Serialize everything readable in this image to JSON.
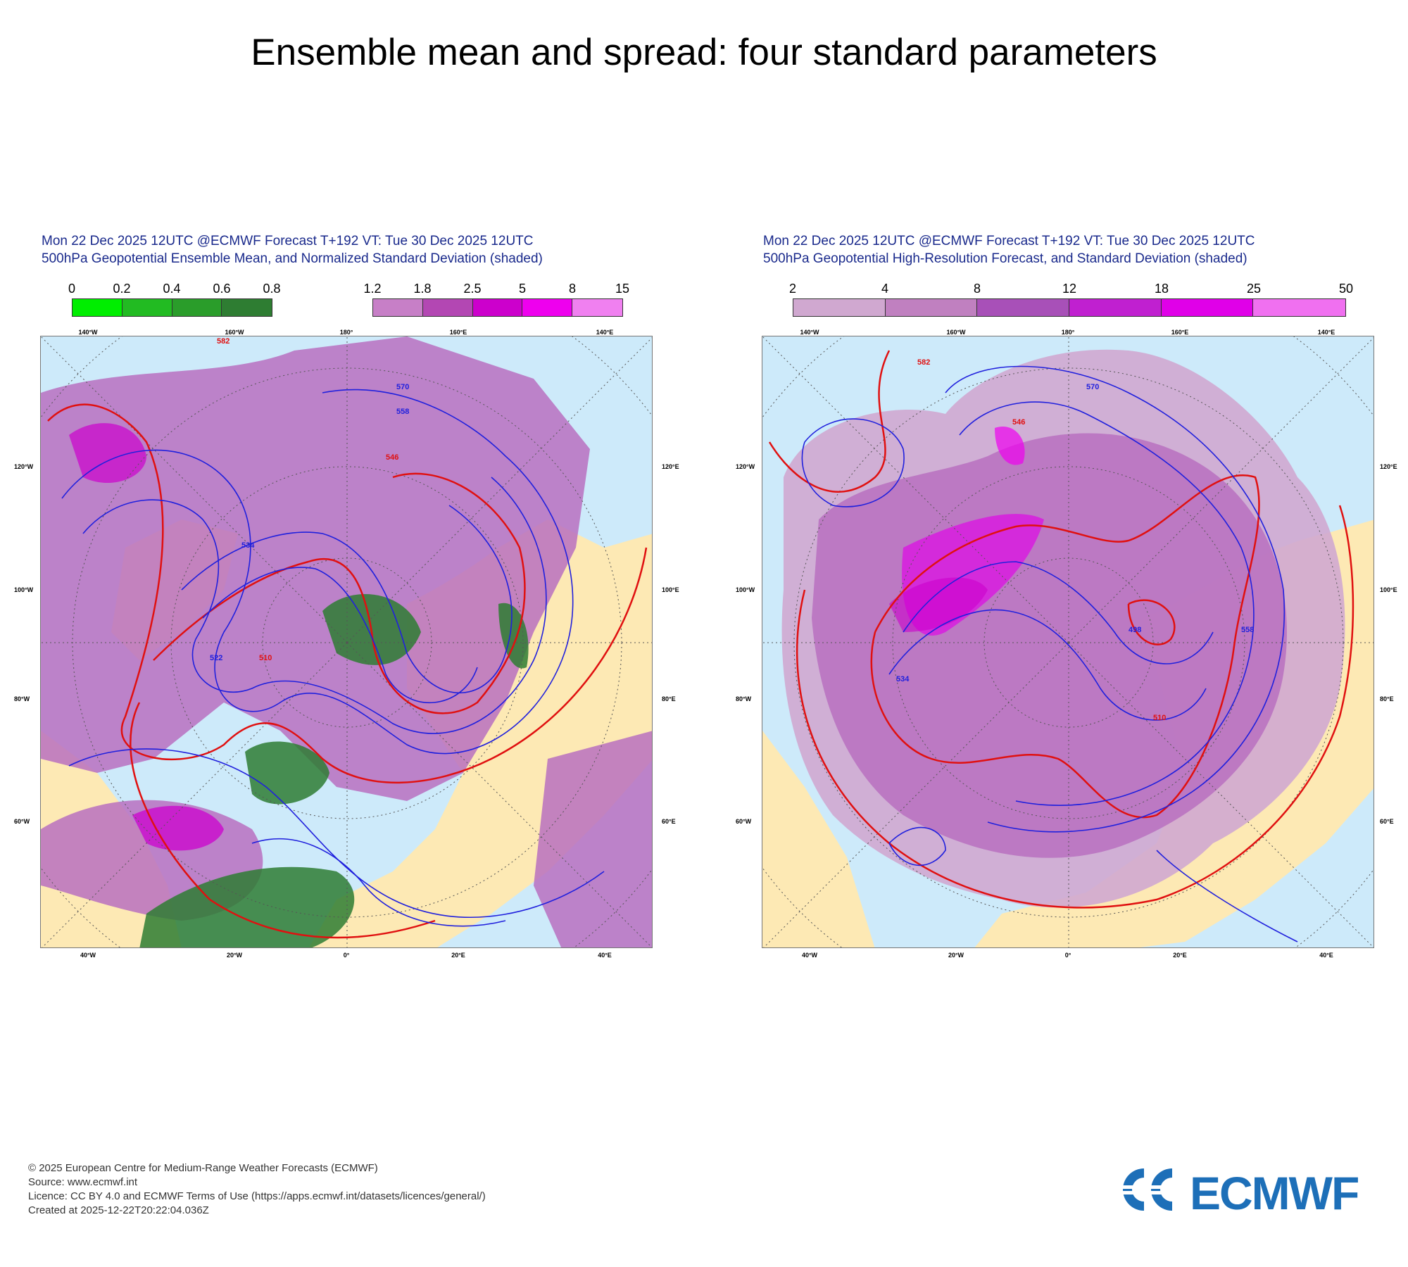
{
  "page_title": "Ensemble mean and spread: four standard parameters",
  "panels": [
    {
      "title_line1": "Mon 22 Dec 2025 12UTC @ECMWF Forecast T+192 VT: Tue 30 Dec 2025 12UTC",
      "title_line2": "500hPa Geopotential Ensemble Mean, and Normalized Standard Deviation (shaded)",
      "colorbar_green": {
        "ticks": [
          "0",
          "0.2",
          "0.4",
          "0.6",
          "0.8"
        ],
        "colors": [
          "#00ee00",
          "#22bb22",
          "#2a9d2a",
          "#2e7d32"
        ]
      },
      "colorbar_purple": {
        "ticks": [
          "1.2",
          "1.8",
          "2.5",
          "5",
          "8",
          "15"
        ],
        "colors": [
          "#c77fc7",
          "#b347b3",
          "#cc00cc",
          "#ee00ee",
          "#f080f0"
        ]
      },
      "contour_labels_red": [
        "582",
        "546",
        "510"
      ],
      "contour_labels_blue": [
        "570",
        "558",
        "534",
        "522"
      ]
    },
    {
      "title_line1": "Mon 22 Dec 2025 12UTC @ECMWF Forecast T+192 VT: Tue 30 Dec 2025 12UTC",
      "title_line2": "500hPa Geopotential High-Resolution Forecast, and Standard Deviation (shaded)",
      "colorbar": {
        "ticks": [
          "2",
          "4",
          "8",
          "12",
          "18",
          "25",
          "50"
        ],
        "colors": [
          "#d0a8d0",
          "#c080c0",
          "#a850b8",
          "#c020d0",
          "#e000e8",
          "#f070f0"
        ]
      },
      "contour_labels_red": [
        "582",
        "546",
        "510"
      ],
      "contour_labels_blue": [
        "570",
        "558",
        "534",
        "498"
      ]
    }
  ],
  "map_labels": {
    "lon_top": [
      "140°W",
      "160°W",
      "180°",
      "160°E",
      "140°E"
    ],
    "lon_bottom": [
      "40°W",
      "20°W",
      "0°",
      "20°E",
      "40°E"
    ],
    "lat_left": [
      "120°W",
      "100°W",
      "80°W",
      "60°W"
    ],
    "lat_right": [
      "120°E",
      "100°E",
      "80°E",
      "60°E"
    ]
  },
  "footer": {
    "line1": "© 2025 European Centre for Medium-Range Weather Forecasts (ECMWF)",
    "line2": "Source: www.ecmwf.int",
    "line3": "Licence: CC BY 4.0 and ECMWF Terms of Use (https://apps.ecmwf.int/datasets/licences/general/)",
    "line4": "Created at 2025-12-22T20:22:04.036Z"
  },
  "logo_text": "ECMWF",
  "colors": {
    "ocean": "#cdeafa",
    "land": "#fde9b4",
    "red_contour": "#e01010",
    "blue_contour": "#2020dd",
    "logo_blue": "#1d6fb8"
  }
}
